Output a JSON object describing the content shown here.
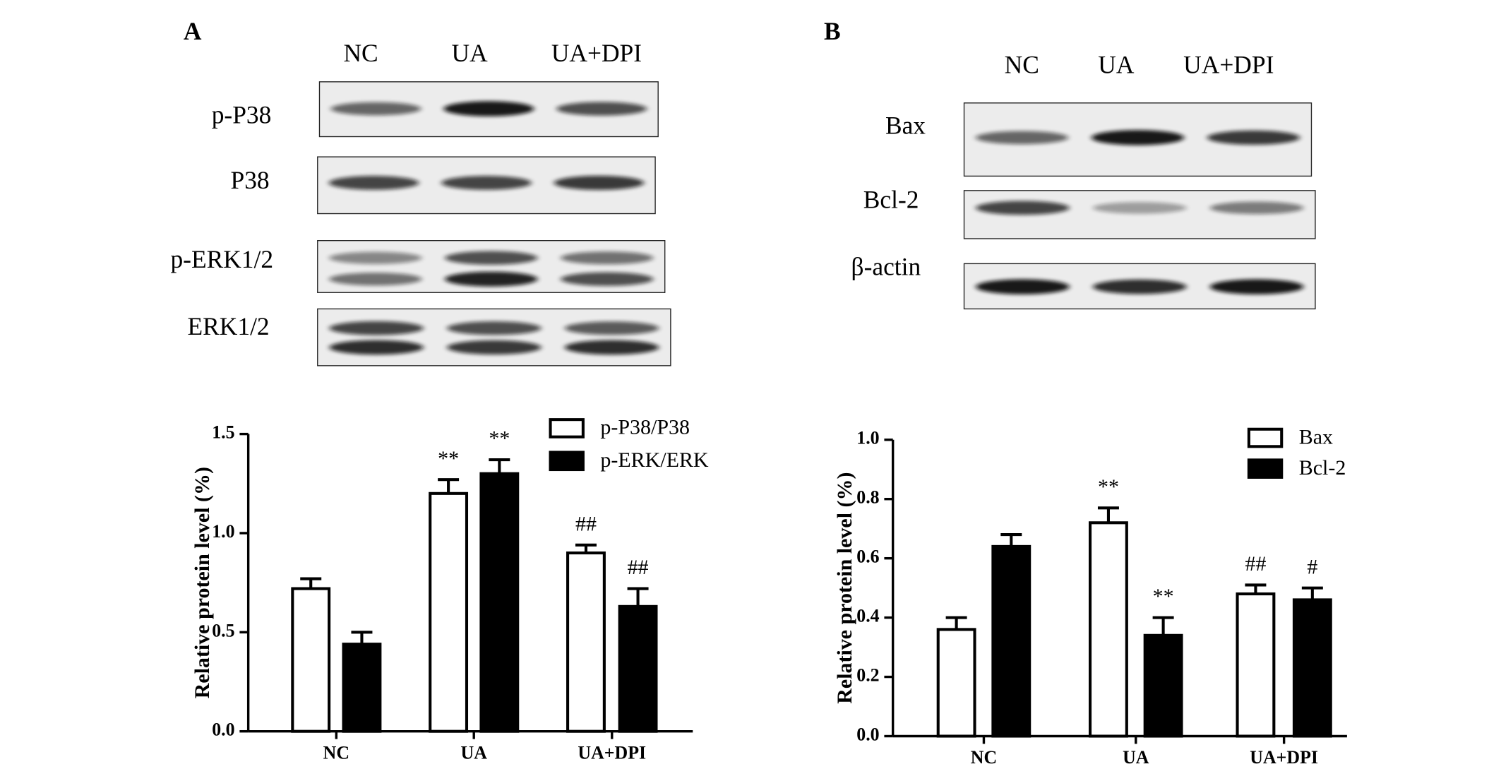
{
  "panels": [
    {
      "label": "A",
      "blot": {
        "lanes": [
          "NC",
          "UA",
          "UA+DPI"
        ],
        "rows": [
          "p-P38",
          "P38",
          "p-ERK1/2",
          "ERK1/2"
        ]
      }
    },
    {
      "label": "B",
      "blot": {
        "lanes": [
          "NC",
          "UA",
          "UA+DPI"
        ],
        "rows": [
          "Bax",
          "Bcl-2",
          "β-actin"
        ]
      }
    }
  ],
  "chart_data": [
    {
      "type": "bar",
      "y_label": "Relative protein level (%)",
      "categories": [
        "NC",
        "UA",
        "UA+DPI"
      ],
      "series": [
        {
          "name": "p-P38/P38",
          "color": "#ffffff",
          "values": [
            0.72,
            1.2,
            0.9
          ],
          "errors": [
            0.05,
            0.07,
            0.04
          ],
          "annotations": [
            null,
            "**",
            "##"
          ]
        },
        {
          "name": "p-ERK/ERK",
          "color": "#000000",
          "values": [
            0.44,
            1.3,
            0.63
          ],
          "errors": [
            0.06,
            0.07,
            0.09
          ],
          "annotations": [
            null,
            "**",
            "##"
          ]
        }
      ],
      "ylim": [
        0,
        1.5
      ],
      "yticks": [
        {
          "value": 0,
          "label": "0.0"
        },
        0.5,
        {
          "value": 1,
          "label": "1.0"
        },
        1.5
      ],
      "legend": "top-right"
    },
    {
      "type": "bar",
      "y_label": "Relative protein level (%)",
      "categories": [
        "NC",
        "UA",
        "UA+DPI"
      ],
      "series": [
        {
          "name": "Bax",
          "color": "#ffffff",
          "values": [
            0.36,
            0.72,
            0.48
          ],
          "errors": [
            0.04,
            0.05,
            0.03
          ],
          "annotations": [
            null,
            "**",
            "##"
          ]
        },
        {
          "name": "Bcl-2",
          "color": "#000000",
          "values": [
            0.64,
            0.34,
            0.46
          ],
          "errors": [
            0.04,
            0.06,
            0.04
          ],
          "annotations": [
            null,
            "**",
            "#"
          ]
        }
      ],
      "ylim": [
        0,
        1
      ],
      "yticks": [
        {
          "value": 0,
          "label": "0.0"
        },
        0.2,
        0.4,
        0.6,
        0.8,
        {
          "value": 1,
          "label": "1.0"
        }
      ],
      "legend": "top-right"
    }
  ]
}
